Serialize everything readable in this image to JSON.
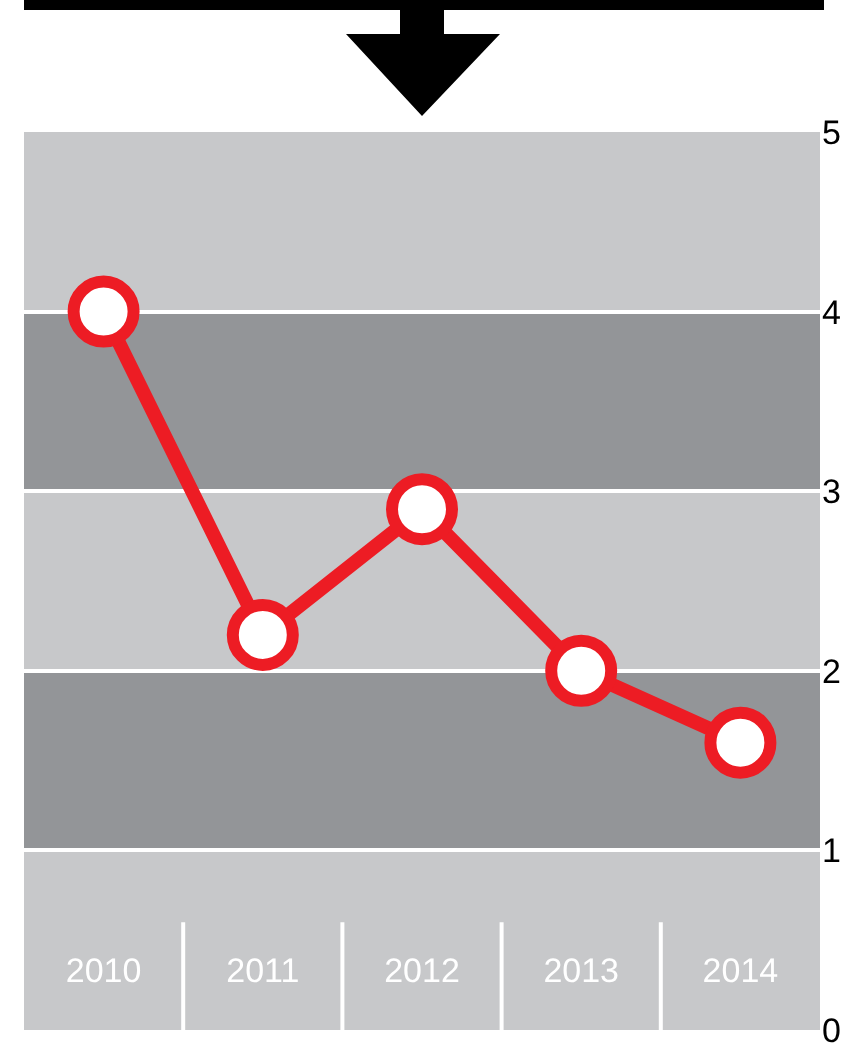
{
  "chart_data": {
    "type": "line",
    "categories": [
      "2010",
      "2011",
      "2012",
      "2013",
      "2014"
    ],
    "series": [
      {
        "color": "#ed1c24",
        "values": [
          4.0,
          2.2,
          2.9,
          2.0,
          1.6
        ]
      }
    ],
    "ylim": [
      0,
      5
    ],
    "yticks": [
      0,
      1,
      2,
      3,
      4,
      5
    ],
    "grid": "y",
    "marker": "circle",
    "line_style": "solid",
    "bands": [
      {
        "axis": "y",
        "from": 1,
        "to": 2,
        "color": "#939598"
      },
      {
        "axis": "y",
        "from": 3,
        "to": 4,
        "color": "#939598"
      }
    ]
  }
}
